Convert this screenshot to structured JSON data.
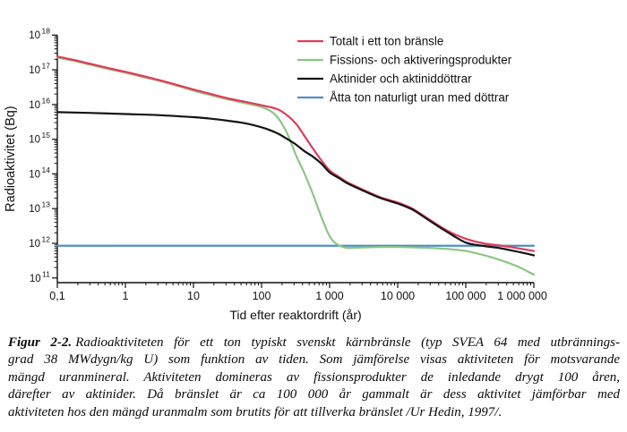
{
  "caption": {
    "label": "Figur 2-2.",
    "lines": [
      "Radioaktiviteten för ett ton typiskt svenskt kärnbränsle (typ SVEA 64 med utbrännings-",
      "grad 38 MWdygn/kg U) som funktion av tiden. Som jämförelse visas aktiviteten för motsvarande",
      "mängd uranmineral. Aktiviteten domineras av fissionsprodukter de inledande drygt 100 åren,",
      "därefter av aktinider. Då bränslet är ca 100 000 år gammalt är dess aktivitet jämförbar med",
      "aktiviteten hos den mängd uranmalm som brutits för att tillverka bränslet /Ur Hedin, 1997/."
    ]
  },
  "chart_data": {
    "type": "line",
    "title": "",
    "xlabel": "Tid efter reaktordrift (år)",
    "ylabel": "Radioaktivitet (Bq)",
    "x_scale": "log",
    "y_scale": "log",
    "xlim": [
      0.1,
      1000000
    ],
    "ylim": [
      100000000000.0,
      1e+18
    ],
    "grid": false,
    "legend_position": "top-right",
    "x_ticks": [
      {
        "v": 0.1,
        "label": "0,1"
      },
      {
        "v": 1,
        "label": "1"
      },
      {
        "v": 10,
        "label": "10"
      },
      {
        "v": 100,
        "label": "100"
      },
      {
        "v": 1000,
        "label": "1 000"
      },
      {
        "v": 10000,
        "label": "10 000"
      },
      {
        "v": 100000,
        "label": "100 000"
      },
      {
        "v": 1000000,
        "label": "1 000 000"
      }
    ],
    "y_tick_base": "10",
    "y_tick_exponents": [
      18,
      17,
      16,
      15,
      14,
      13,
      12,
      11
    ],
    "axis_color": "#111111",
    "series": [
      {
        "name": "Totalt i ett ton bränsle",
        "color": "#e23a58",
        "points": [
          [
            0.1,
            2.4e+17
          ],
          [
            0.18,
            1.9e+17
          ],
          [
            0.32,
            1.45e+17
          ],
          [
            0.56,
            1.12e+17
          ],
          [
            1,
            8.7e+16
          ],
          [
            1.8,
            6.6e+16
          ],
          [
            3.2,
            5e+16
          ],
          [
            5.6,
            3.7e+16
          ],
          [
            10,
            2.7e+16
          ],
          [
            18,
            2e+16
          ],
          [
            32,
            1.5e+16
          ],
          [
            56,
            1.2e+16
          ],
          [
            100,
            9500000000000000.0
          ],
          [
            140,
            8200000000000000.0
          ],
          [
            180,
            7000000000000000.0
          ],
          [
            240,
            4800000000000000.0
          ],
          [
            320,
            2800000000000000.0
          ],
          [
            420,
            1300000000000000.0
          ],
          [
            560,
            560000000000000.0
          ],
          [
            750,
            250000000000000.0
          ],
          [
            1000,
            126000000000000.0
          ],
          [
            1400,
            80000000000000.0
          ],
          [
            1800,
            58000000000000.0
          ],
          [
            3200,
            34000000000000.0
          ],
          [
            5600,
            21000000000000.0
          ],
          [
            10000,
            15000000000000.0
          ],
          [
            14000,
            11500000000000.0
          ],
          [
            18000,
            9000000000000.0
          ],
          [
            32000,
            4300000000000.0
          ],
          [
            56000,
            2200000000000.0
          ],
          [
            100000,
            1350000000000.0
          ],
          [
            180000,
            1000000000000.0
          ],
          [
            320000,
            860000000000.0
          ],
          [
            560000,
            730000000000.0
          ],
          [
            1000000,
            600000000000.0
          ]
        ]
      },
      {
        "name": "Fissions- och aktiveringsprodukter",
        "color": "#8cc683",
        "points": [
          [
            0.1,
            2.25e+17
          ],
          [
            0.18,
            1.78e+17
          ],
          [
            0.32,
            1.36e+17
          ],
          [
            0.56,
            1.05e+17
          ],
          [
            1,
            8.2e+16
          ],
          [
            1.8,
            6.2e+16
          ],
          [
            3.2,
            4.7e+16
          ],
          [
            5.6,
            3.5e+16
          ],
          [
            10,
            2.5e+16
          ],
          [
            18,
            1.85e+16
          ],
          [
            32,
            1.4e+16
          ],
          [
            56,
            1.1e+16
          ],
          [
            100,
            8400000000000000.0
          ],
          [
            140,
            6200000000000000.0
          ],
          [
            180,
            3800000000000000.0
          ],
          [
            240,
            1400000000000000.0
          ],
          [
            320,
            350000000000000.0
          ],
          [
            420,
            110000000000000.0
          ],
          [
            560,
            28000000000000.0
          ],
          [
            750,
            6000000000000.0
          ],
          [
            1000,
            1600000000000.0
          ],
          [
            1300,
            920000000000.0
          ],
          [
            1800,
            740000000000.0
          ],
          [
            3200,
            760000000000.0
          ],
          [
            5600,
            780000000000.0
          ],
          [
            10000,
            780000000000.0
          ],
          [
            18000,
            760000000000.0
          ],
          [
            32000,
            730000000000.0
          ],
          [
            56000,
            680000000000.0
          ],
          [
            100000,
            600000000000.0
          ],
          [
            180000,
            460000000000.0
          ],
          [
            320000,
            330000000000.0
          ],
          [
            560000,
            220000000000.0
          ],
          [
            1000000,
            125000000000.0
          ]
        ]
      },
      {
        "name": "Aktinider och aktiniddöttrar",
        "color": "#141414",
        "points": [
          [
            0.1,
            6000000000000000.0
          ],
          [
            0.32,
            5700000000000000.0
          ],
          [
            1,
            5300000000000000.0
          ],
          [
            3.2,
            4900000000000000.0
          ],
          [
            10,
            4300000000000000.0
          ],
          [
            18,
            3900000000000000.0
          ],
          [
            32,
            3400000000000000.0
          ],
          [
            56,
            2900000000000000.0
          ],
          [
            100,
            2200000000000000.0
          ],
          [
            140,
            1750000000000000.0
          ],
          [
            180,
            1400000000000000.0
          ],
          [
            240,
            1000000000000000.0
          ],
          [
            320,
            700000000000000.0
          ],
          [
            420,
            460000000000000.0
          ],
          [
            560,
            320000000000000.0
          ],
          [
            750,
            200000000000000.0
          ],
          [
            1000,
            110000000000000.0
          ],
          [
            1400,
            74000000000000.0
          ],
          [
            1800,
            54000000000000.0
          ],
          [
            3200,
            32000000000000.0
          ],
          [
            5600,
            20000000000000.0
          ],
          [
            10000,
            14000000000000.0
          ],
          [
            14000,
            10800000000000.0
          ],
          [
            18000,
            8500000000000.0
          ],
          [
            32000,
            4000000000000.0
          ],
          [
            56000,
            2000000000000.0
          ],
          [
            100000,
            1050000000000.0
          ],
          [
            180000,
            840000000000.0
          ],
          [
            320000,
            720000000000.0
          ],
          [
            560000,
            580000000000.0
          ],
          [
            1000000,
            450000000000.0
          ]
        ]
      },
      {
        "name": "Åtta ton naturligt uran med döttrar",
        "color": "#4e8fc4",
        "points": [
          [
            0.1,
            850000000000.0
          ],
          [
            1000000,
            850000000000.0
          ]
        ]
      }
    ]
  }
}
